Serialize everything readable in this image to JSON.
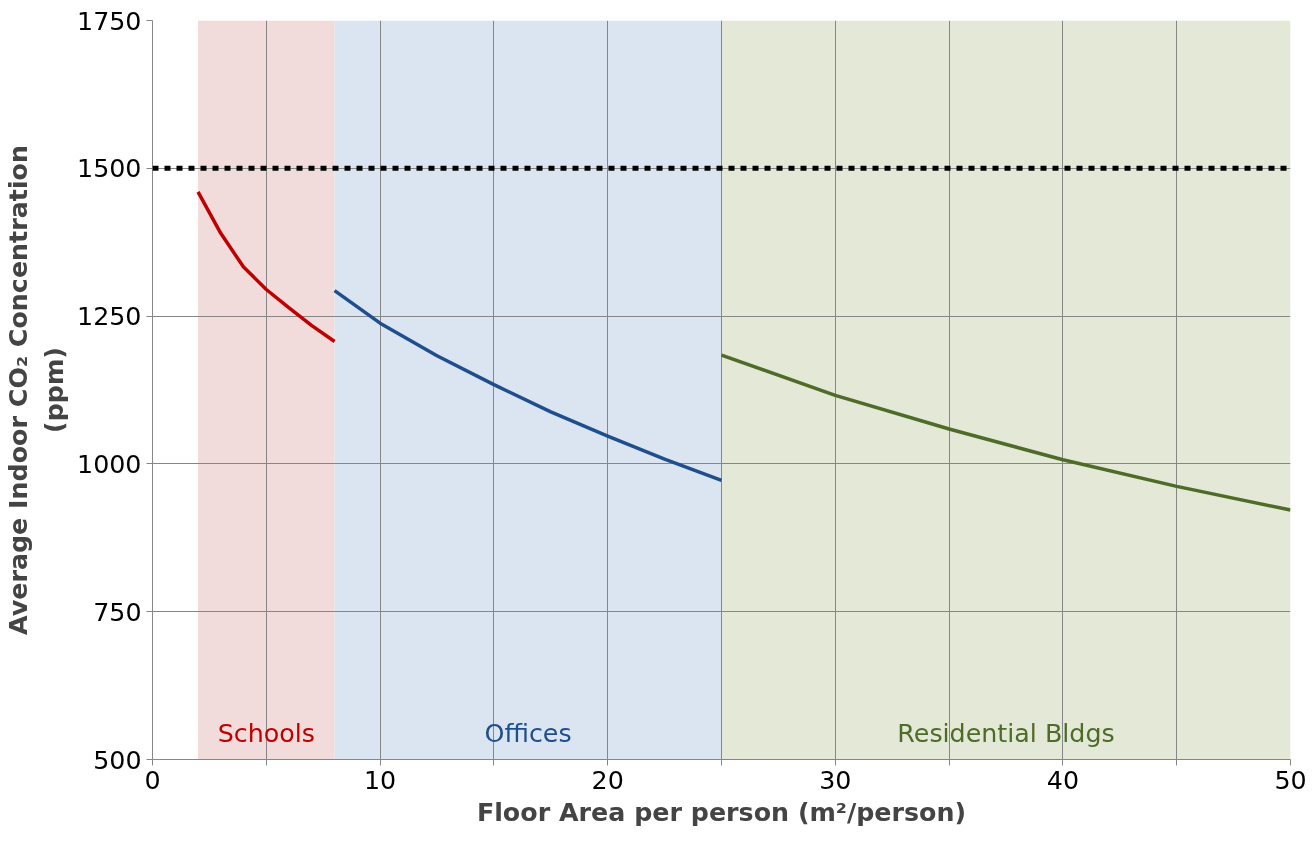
{
  "chart_data": {
    "type": "line",
    "xlabel": "Floor Area per person (m²/person)",
    "ylabel": "Average Indoor CO₂ Concentration\n(ppm)",
    "xlim": [
      0,
      50
    ],
    "ylim": [
      500,
      1750
    ],
    "xticks": [
      0,
      {
        "value": 5,
        "label": null
      },
      10,
      {
        "value": 15,
        "label": null
      },
      20,
      {
        "value": 25,
        "label": null
      },
      30,
      {
        "value": 35,
        "label": null
      },
      40,
      {
        "value": 45,
        "label": null
      },
      50
    ],
    "yticks": [
      500,
      750,
      1000,
      1250,
      1500,
      1750
    ],
    "grid": true,
    "line_style": "solid",
    "series": [
      {
        "color": "#c00000",
        "x": [
          2,
          3,
          4,
          5,
          6,
          7,
          8
        ],
        "values": [
          1460,
          1390,
          1333,
          1295,
          1264,
          1234,
          1207
        ]
      },
      {
        "color": "#1f4e8c",
        "x": [
          8,
          10,
          12.5,
          15,
          17.5,
          20,
          22.5,
          25
        ],
        "values": [
          1293,
          1238,
          1183,
          1134,
          1088,
          1047,
          1008,
          972
        ]
      },
      {
        "color": "#4f6b28",
        "x": [
          25,
          30,
          35,
          40,
          45,
          50
        ],
        "values": [
          1184,
          1116,
          1059,
          1007,
          962,
          922
        ]
      }
    ],
    "ref_lines": [
      {
        "axis": "y",
        "value": 1500,
        "color": "#000000",
        "line_style": "dashed"
      }
    ],
    "bands": [
      {
        "axis": "x",
        "from": 2,
        "to": 8,
        "label": "Schools",
        "color": "#f2dcdb"
      },
      {
        "axis": "x",
        "from": 8,
        "to": 25,
        "label": "Offices",
        "color": "#dbe5f1"
      },
      {
        "axis": "x",
        "from": 25,
        "to": 50,
        "label": "Residential Bldgs",
        "color": "#e3e8d7"
      }
    ]
  }
}
